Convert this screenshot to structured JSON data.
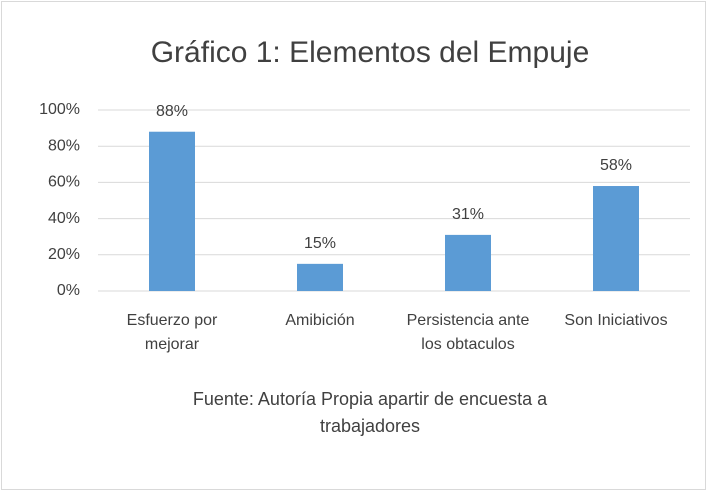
{
  "chart_data": {
    "type": "bar",
    "title": "Gráfico 1: Elementos del Empuje",
    "categories": [
      "Esfuerzo por mejorar",
      "Amibición",
      "Persistencia ante los obtaculos",
      "Son Iniciativos"
    ],
    "values": [
      88,
      15,
      31,
      58
    ],
    "value_labels": [
      "88%",
      "15%",
      "31%",
      "58%"
    ],
    "color": "#5b9bd5",
    "ylim": [
      0,
      100
    ],
    "yticks": [
      {
        "value": 0,
        "label": "0%"
      },
      {
        "value": 20,
        "label": "20%"
      },
      {
        "value": 40,
        "label": "40%"
      },
      {
        "value": 60,
        "label": "60%"
      },
      {
        "value": 80,
        "label": "80%"
      },
      {
        "value": 100,
        "label": "100%"
      }
    ],
    "grid": true,
    "annotations": [
      "Fuente: Autoría Propia apartir de encuesta a trabajadores"
    ]
  }
}
